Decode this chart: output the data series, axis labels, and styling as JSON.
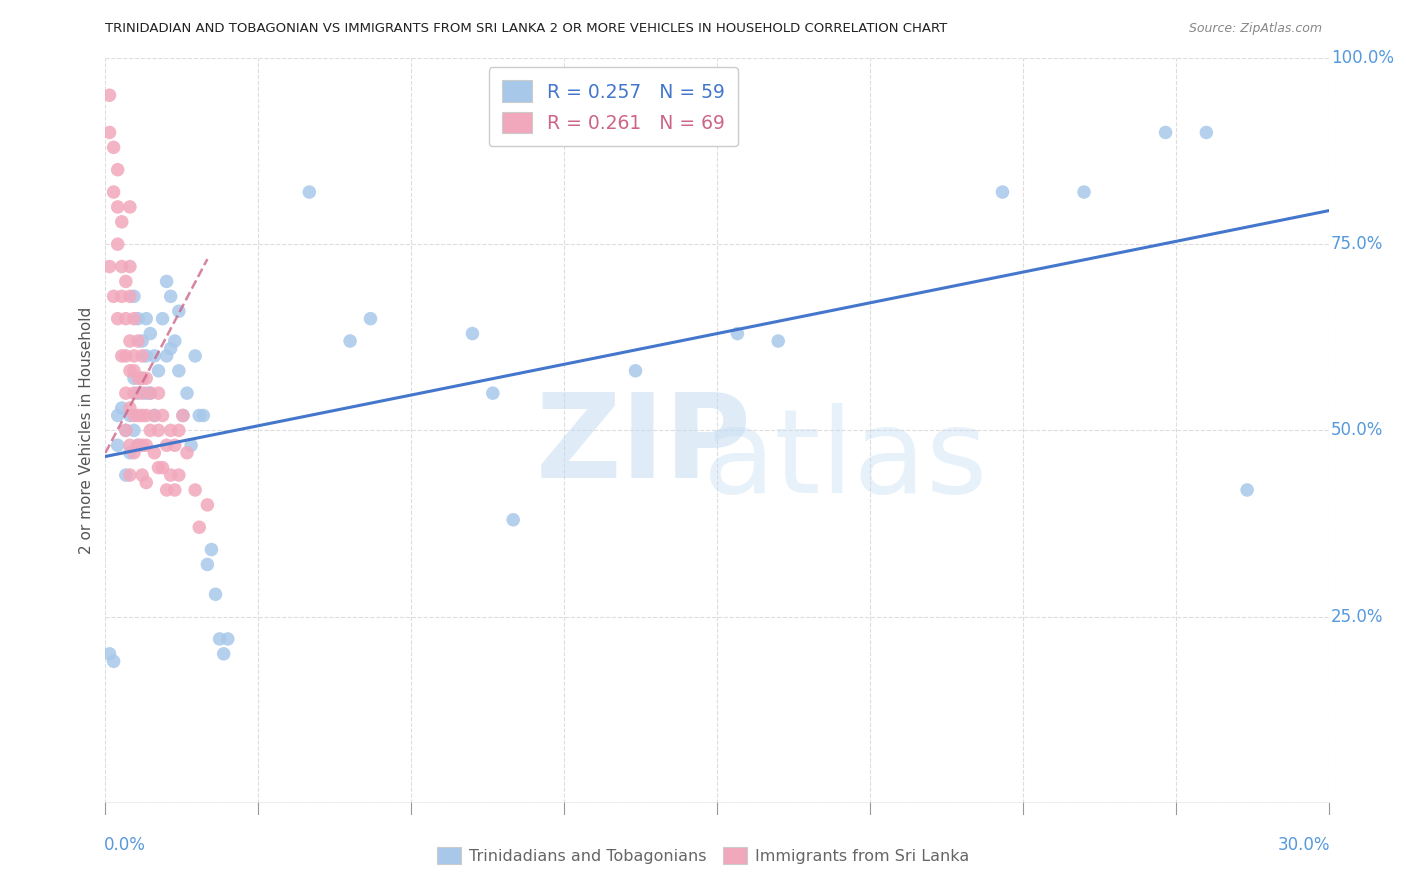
{
  "title": "TRINIDADIAN AND TOBAGONIAN VS IMMIGRANTS FROM SRI LANKA 2 OR MORE VEHICLES IN HOUSEHOLD CORRELATION CHART",
  "source": "Source: ZipAtlas.com",
  "ylabel": "2 or more Vehicles in Household",
  "xlim": [
    0.0,
    0.3
  ],
  "ylim": [
    0.0,
    1.0
  ],
  "blue_R": 0.257,
  "blue_N": 59,
  "pink_R": 0.261,
  "pink_N": 69,
  "blue_color": "#A8C8EA",
  "pink_color": "#F2A8BC",
  "blue_line_color": "#4477CC",
  "pink_line_color": "#CC6688",
  "right_axis_color": "#5599DD",
  "blue_label": "Trinidadians and Tobagonians",
  "pink_label": "Immigrants from Sri Lanka",
  "background_color": "#FFFFFF",
  "grid_color": "#DDDDDD",
  "ytick_positions": [
    0.0,
    0.25,
    0.5,
    0.75,
    1.0
  ],
  "ytick_labels": [
    "",
    "25.0%",
    "50.0%",
    "75.0%",
    "100.0%"
  ],
  "blue_x": [
    0.001,
    0.002,
    0.003,
    0.003,
    0.004,
    0.005,
    0.005,
    0.006,
    0.006,
    0.007,
    0.007,
    0.007,
    0.008,
    0.008,
    0.008,
    0.009,
    0.009,
    0.01,
    0.01,
    0.01,
    0.011,
    0.011,
    0.012,
    0.012,
    0.013,
    0.014,
    0.015,
    0.015,
    0.016,
    0.016,
    0.017,
    0.018,
    0.018,
    0.019,
    0.02,
    0.021,
    0.022,
    0.023,
    0.024,
    0.025,
    0.026,
    0.027,
    0.028,
    0.029,
    0.03,
    0.05,
    0.06,
    0.065,
    0.09,
    0.095,
    0.1,
    0.13,
    0.155,
    0.165,
    0.22,
    0.24,
    0.26,
    0.27,
    0.28
  ],
  "blue_y": [
    0.2,
    0.19,
    0.52,
    0.48,
    0.53,
    0.5,
    0.44,
    0.52,
    0.47,
    0.57,
    0.5,
    0.68,
    0.55,
    0.48,
    0.65,
    0.62,
    0.57,
    0.65,
    0.6,
    0.55,
    0.63,
    0.55,
    0.6,
    0.52,
    0.58,
    0.65,
    0.7,
    0.6,
    0.68,
    0.61,
    0.62,
    0.66,
    0.58,
    0.52,
    0.55,
    0.48,
    0.6,
    0.52,
    0.52,
    0.32,
    0.34,
    0.28,
    0.22,
    0.2,
    0.22,
    0.82,
    0.62,
    0.65,
    0.63,
    0.55,
    0.38,
    0.58,
    0.63,
    0.62,
    0.82,
    0.82,
    0.9,
    0.9,
    0.42
  ],
  "pink_x": [
    0.001,
    0.001,
    0.001,
    0.002,
    0.002,
    0.002,
    0.003,
    0.003,
    0.003,
    0.003,
    0.004,
    0.004,
    0.004,
    0.004,
    0.005,
    0.005,
    0.005,
    0.005,
    0.005,
    0.006,
    0.006,
    0.006,
    0.006,
    0.006,
    0.006,
    0.006,
    0.006,
    0.007,
    0.007,
    0.007,
    0.007,
    0.007,
    0.007,
    0.008,
    0.008,
    0.008,
    0.008,
    0.009,
    0.009,
    0.009,
    0.009,
    0.009,
    0.009,
    0.01,
    0.01,
    0.01,
    0.01,
    0.011,
    0.011,
    0.012,
    0.012,
    0.013,
    0.013,
    0.013,
    0.014,
    0.014,
    0.015,
    0.015,
    0.016,
    0.016,
    0.017,
    0.017,
    0.018,
    0.018,
    0.019,
    0.02,
    0.022,
    0.023,
    0.025
  ],
  "pink_y": [
    0.95,
    0.9,
    0.72,
    0.88,
    0.82,
    0.68,
    0.85,
    0.8,
    0.75,
    0.65,
    0.78,
    0.72,
    0.68,
    0.6,
    0.7,
    0.65,
    0.6,
    0.55,
    0.5,
    0.8,
    0.72,
    0.68,
    0.62,
    0.58,
    0.53,
    0.48,
    0.44,
    0.65,
    0.6,
    0.58,
    0.55,
    0.52,
    0.47,
    0.62,
    0.57,
    0.52,
    0.48,
    0.6,
    0.57,
    0.55,
    0.52,
    0.48,
    0.44,
    0.57,
    0.52,
    0.48,
    0.43,
    0.55,
    0.5,
    0.52,
    0.47,
    0.55,
    0.5,
    0.45,
    0.52,
    0.45,
    0.48,
    0.42,
    0.5,
    0.44,
    0.48,
    0.42,
    0.5,
    0.44,
    0.52,
    0.47,
    0.42,
    0.37,
    0.4
  ],
  "blue_line_x": [
    0.0,
    0.3
  ],
  "blue_line_y": [
    0.465,
    0.795
  ],
  "pink_line_x": [
    0.0,
    0.025
  ],
  "pink_line_y": [
    0.47,
    0.73
  ]
}
